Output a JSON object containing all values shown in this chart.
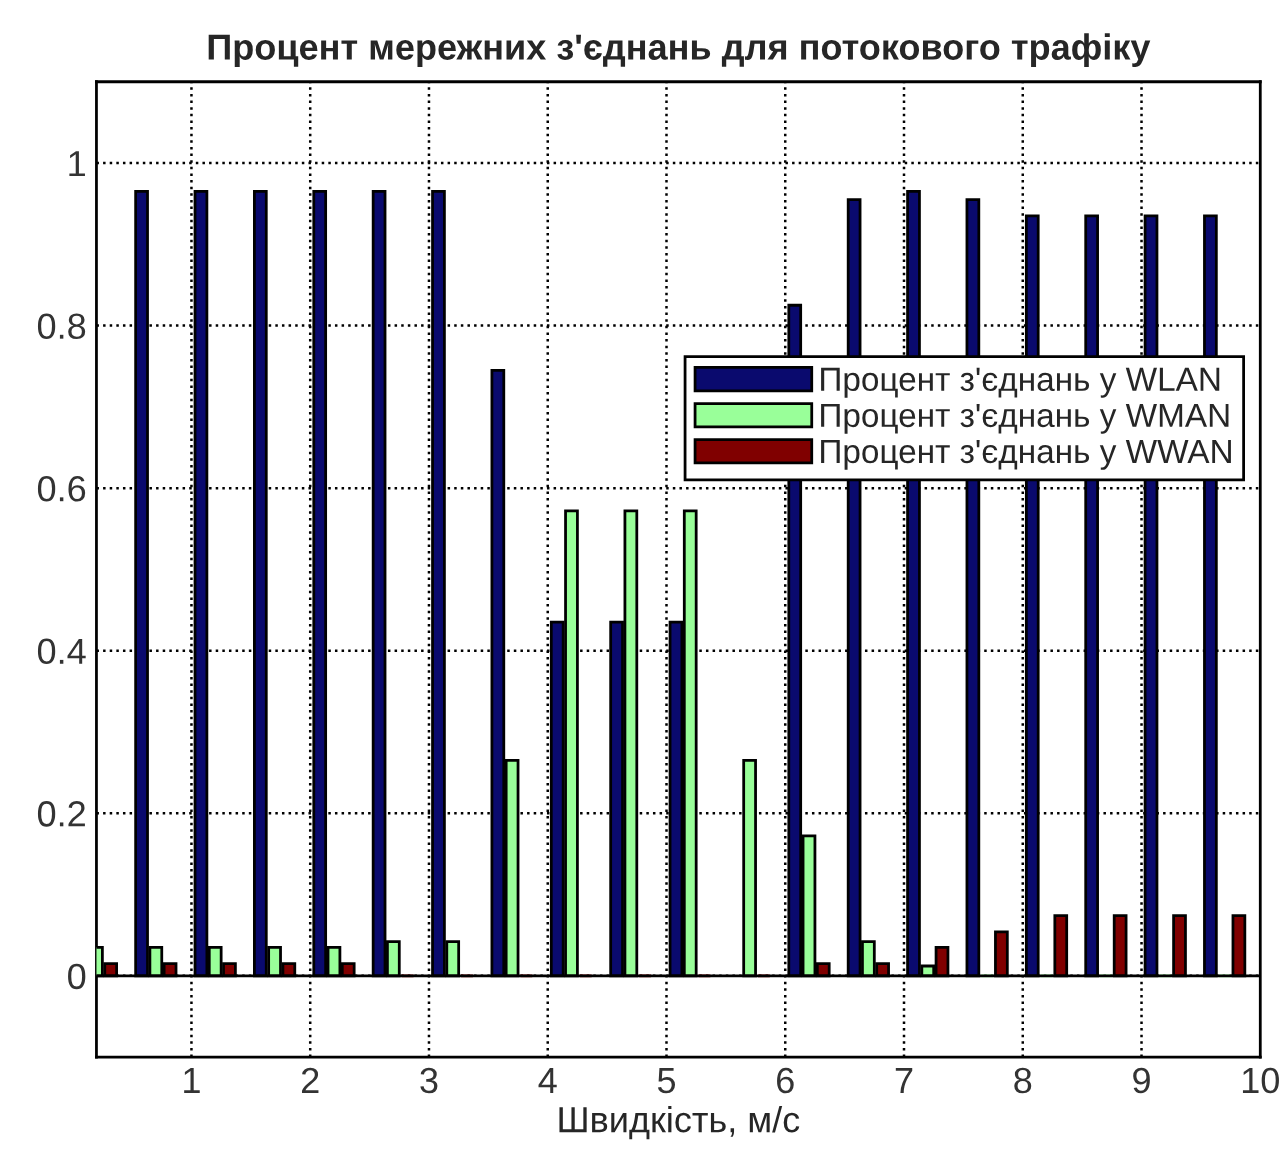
{
  "chart_data": {
    "type": "bar",
    "title": "Процент мережних з'єднань для потокового трафіку",
    "xlabel": "Швидкість, м/с",
    "x": [
      0.2,
      0.7,
      1.2,
      1.7,
      2.2,
      2.7,
      3.2,
      3.7,
      4.2,
      4.7,
      5.2,
      5.7,
      6.2,
      6.7,
      7.2,
      7.7,
      8.2,
      8.7,
      9.2,
      9.7
    ],
    "series": [
      {
        "name": "Процент з'єднань у WLAN",
        "color": "#0a0a6e",
        "values": [
          null,
          0.965,
          0.965,
          0.965,
          0.965,
          0.965,
          0.965,
          0.745,
          0.435,
          0.435,
          0.435,
          null,
          0.825,
          0.955,
          0.965,
          0.955,
          0.935,
          0.935,
          0.935,
          0.935
        ]
      },
      {
        "name": "Процент з'єднань у WMAN",
        "color": "#99ff99",
        "values": [
          0.035,
          0.035,
          0.035,
          0.035,
          0.035,
          0.042,
          0.042,
          0.265,
          0.572,
          0.572,
          0.572,
          0.265,
          0.172,
          0.042,
          0.012,
          0,
          0,
          0,
          0,
          0
        ]
      },
      {
        "name": "Процент з'єднань у WWAN",
        "color": "#800000",
        "values": [
          0.015,
          0.015,
          0.015,
          0.015,
          0.015,
          0,
          0,
          0,
          0,
          0,
          0,
          0,
          0.015,
          0.015,
          0.035,
          0.054,
          0.074,
          0.074,
          0.074,
          0.074
        ]
      }
    ],
    "xlim": [
      0.2,
      10
    ],
    "ylim": [
      -0.1,
      1.1
    ],
    "xticks": [
      1,
      2,
      3,
      4,
      5,
      6,
      7,
      8,
      9,
      10
    ],
    "yticks": [
      0,
      0.2,
      0.4,
      0.6,
      0.8,
      1
    ],
    "grid": true,
    "legend": "right",
    "line_style": "dotted"
  }
}
